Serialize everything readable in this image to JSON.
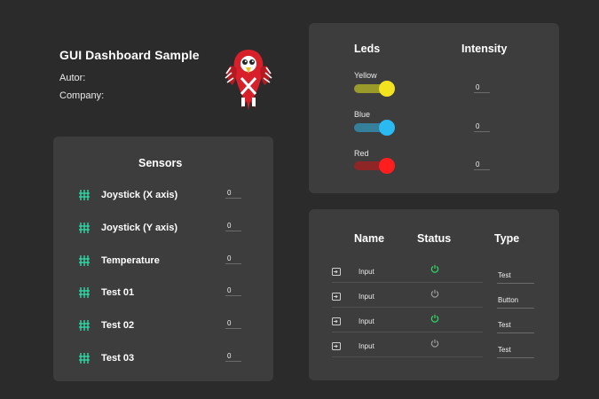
{
  "header": {
    "title": "GUI Dashboard Sample",
    "author_label": "Autor:",
    "company_label": "Company:"
  },
  "logo": {
    "icon": "parrot-logo-icon"
  },
  "sensors": {
    "title": "Sensors",
    "icon": "sliders-icon",
    "icon_color": "#2ed9a6",
    "items": [
      {
        "label": "Joystick (X axis)",
        "value": "0"
      },
      {
        "label": "Joystick (Y axis)",
        "value": "0"
      },
      {
        "label": "Temperature",
        "value": "0"
      },
      {
        "label": "Test 01",
        "value": "0"
      },
      {
        "label": "Test 02",
        "value": "0"
      },
      {
        "label": "Test 03",
        "value": "0"
      }
    ]
  },
  "leds": {
    "title_leds": "Leds",
    "title_intensity": "Intensity",
    "items": [
      {
        "name": "Yellow",
        "on": true,
        "track_color": "#9a9a2a",
        "thumb_color": "#f3e31e",
        "intensity": "0"
      },
      {
        "name": "Blue",
        "on": true,
        "track_color": "#357f9a",
        "thumb_color": "#2bb9f1",
        "intensity": "0"
      },
      {
        "name": "Red",
        "on": true,
        "track_color": "#8f2626",
        "thumb_color": "#ff1d1d",
        "intensity": "0"
      }
    ]
  },
  "table": {
    "headers": {
      "name": "Name",
      "status": "Status",
      "type": "Type"
    },
    "rows": [
      {
        "name": "Input",
        "status": "on",
        "type": "Test"
      },
      {
        "name": "Input",
        "status": "off",
        "type": "Button"
      },
      {
        "name": "Input",
        "status": "on",
        "type": "Test"
      },
      {
        "name": "Input",
        "status": "off",
        "type": "Test"
      }
    ],
    "status_on_color": "#2ed96b",
    "status_off_color": "#9a9a9a",
    "row_icon": "input-icon"
  }
}
